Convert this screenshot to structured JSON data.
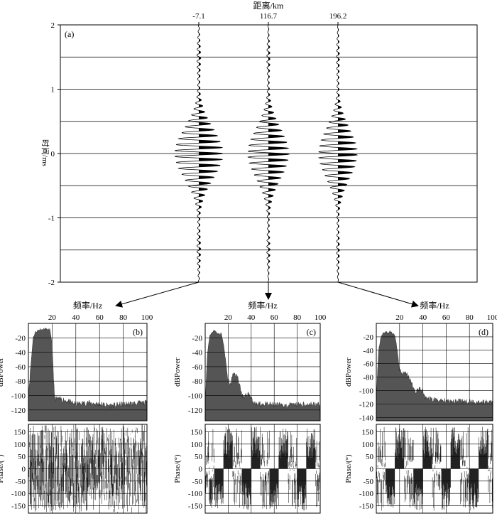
{
  "chart_data": [
    {
      "type": "line",
      "panel_label": "(a)",
      "xlabel": "距离/km",
      "ylabel": "时间/ms",
      "traces_x_km": [
        "-7.1",
        "116.7",
        "196.2"
      ],
      "ylim": [
        -2,
        2
      ],
      "yticks": [
        "2",
        "1",
        "0",
        "-1",
        "-2"
      ],
      "y_gridlines": [
        2,
        1.5,
        1,
        0.5,
        0,
        -0.5,
        -1,
        -1.5,
        -2
      ],
      "grid": true,
      "series": [
        {
          "name": "-7.1",
          "peak_amplitude_rel": 1.0,
          "fill": "positive-lobes-black"
        },
        {
          "name": "116.7",
          "peak_amplitude_rel": 0.85,
          "fill": "positive-lobes-black"
        },
        {
          "name": "196.2",
          "peak_amplitude_rel": 0.8,
          "fill": "positive-lobes-black"
        }
      ]
    },
    {
      "type": "area",
      "panel_label": "(b)",
      "source_trace": "-7.1",
      "xlabel": "频率/Hz",
      "xlim": [
        0,
        100
      ],
      "xticks": [
        "20",
        "40",
        "60",
        "80",
        "100"
      ],
      "power": {
        "ylabel": "dBPower",
        "ylim": [
          -135,
          0
        ],
        "yticks": [
          "-20",
          "-40",
          "-60",
          "-80",
          "-100",
          "-120"
        ],
        "x": [
          0,
          2,
          4,
          6,
          8,
          10,
          12,
          14,
          16,
          18,
          20,
          22,
          30,
          40,
          50,
          60,
          70,
          80,
          90,
          100
        ],
        "values": [
          -100,
          -60,
          -20,
          -12,
          -10,
          -8,
          -9,
          -7,
          -9,
          -8,
          -30,
          -104,
          -106,
          -112,
          -110,
          -112,
          -114,
          -112,
          -111,
          -110
        ]
      },
      "phase": {
        "ylabel": "Phase/(°)",
        "ylim": [
          -180,
          180
        ],
        "yticks": [
          "150",
          "100",
          "50",
          "0",
          "-50",
          "-100",
          "-150"
        ],
        "pattern": "dense-wrapped-noise"
      }
    },
    {
      "type": "area",
      "panel_label": "(c)",
      "source_trace": "116.7",
      "xlabel": "频率/Hz",
      "xlim": [
        0,
        100
      ],
      "xticks": [
        "20",
        "40",
        "60",
        "80",
        "100"
      ],
      "power": {
        "ylabel": "dBPower",
        "ylim": [
          -135,
          0
        ],
        "yticks": [
          "-20",
          "-40",
          "-60",
          "-80",
          "-100",
          "-120"
        ],
        "x": [
          0,
          2,
          4,
          6,
          8,
          10,
          12,
          14,
          16,
          18,
          20,
          22,
          24,
          26,
          28,
          30,
          32,
          34,
          36,
          38,
          40,
          42,
          44,
          50,
          60,
          70,
          80,
          90,
          100
        ],
        "values": [
          -110,
          -40,
          -18,
          -12,
          -10,
          -12,
          -15,
          -14,
          -30,
          -55,
          -80,
          -85,
          -72,
          -70,
          -74,
          -85,
          -100,
          -105,
          -98,
          -97,
          -103,
          -110,
          -112,
          -112,
          -113,
          -114,
          -113,
          -112,
          -113
        ]
      },
      "phase": {
        "ylabel": "Phase/(°)",
        "ylim": [
          -180,
          180
        ],
        "yticks": [
          "150",
          "100",
          "50",
          "0",
          "-50",
          "-100",
          "-150"
        ],
        "pattern": "banded-wrapped"
      }
    },
    {
      "type": "area",
      "panel_label": "(d)",
      "source_trace": "196.2",
      "xlabel": "频率/Hz",
      "xlim": [
        0,
        100
      ],
      "xticks": [
        "20",
        "40",
        "60",
        "80",
        "100"
      ],
      "power": {
        "ylabel": "dBPower",
        "ylim": [
          -145,
          0
        ],
        "yticks": [
          "-20",
          "-40",
          "-60",
          "-80",
          "-100",
          "-120",
          "-140"
        ],
        "x": [
          0,
          2,
          4,
          6,
          8,
          10,
          12,
          14,
          16,
          18,
          20,
          22,
          24,
          26,
          28,
          30,
          32,
          34,
          36,
          38,
          40,
          42,
          44,
          50,
          60,
          70,
          80,
          90,
          100
        ],
        "values": [
          -120,
          -40,
          -20,
          -15,
          -12,
          -14,
          -12,
          -15,
          -18,
          -40,
          -70,
          -72,
          -73,
          -75,
          -80,
          -88,
          -97,
          -102,
          -100,
          -98,
          -103,
          -110,
          -112,
          -114,
          -115,
          -116,
          -117,
          -117,
          -118
        ]
      },
      "phase": {
        "ylabel": "Phase/(°)",
        "ylim": [
          -180,
          180
        ],
        "yticks": [
          "150",
          "100",
          "50",
          "0",
          "-50",
          "-100",
          "-150"
        ],
        "pattern": "banded-wrapped"
      }
    }
  ]
}
